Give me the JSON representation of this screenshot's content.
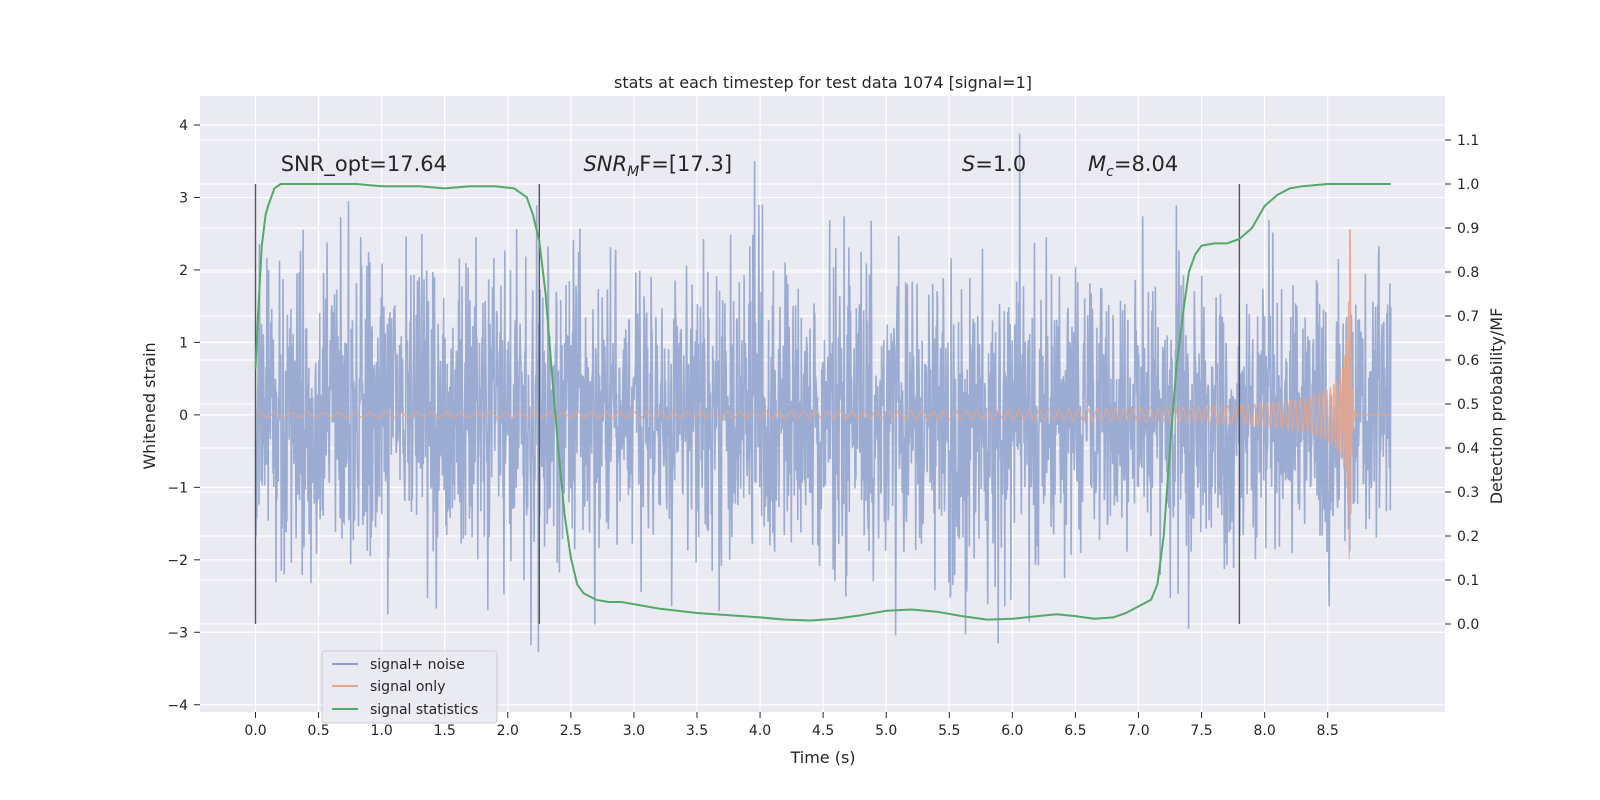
{
  "chart_data": {
    "type": "line",
    "title": "stats at each timestep for test data 1074 [signal=1]",
    "xlabel": "Time (s)",
    "ylabel_left": "Whitened strain",
    "ylabel_right": "Detection probability/MF",
    "xlim": [
      -0.44,
      9.43
    ],
    "ylim_left": [
      -4.1,
      4.4
    ],
    "ylim_right": [
      -0.2,
      1.2
    ],
    "x_ticks": [
      "0.0",
      "0.5",
      "1.0",
      "1.5",
      "2.0",
      "2.5",
      "3.0",
      "3.5",
      "4.0",
      "4.5",
      "5.0",
      "5.5",
      "6.0",
      "6.5",
      "7.0",
      "7.5",
      "8.0",
      "8.5"
    ],
    "x_tick_values": [
      0,
      0.5,
      1,
      1.5,
      2,
      2.5,
      3,
      3.5,
      4,
      4.5,
      5,
      5.5,
      6,
      6.5,
      7,
      7.5,
      8,
      8.5
    ],
    "y_ticks_left": [
      "−4",
      "−3",
      "−2",
      "−1",
      "0",
      "1",
      "2",
      "3",
      "4"
    ],
    "y_tick_values_left": [
      -4,
      -3,
      -2,
      -1,
      0,
      1,
      2,
      3,
      4
    ],
    "y_ticks_right": [
      "0.0",
      "0.1",
      "0.2",
      "0.3",
      "0.4",
      "0.5",
      "0.6",
      "0.7",
      "0.8",
      "0.9",
      "1.0",
      "1.1"
    ],
    "y_tick_values_right": [
      0,
      0.1,
      0.2,
      0.3,
      0.4,
      0.5,
      0.6,
      0.7,
      0.8,
      0.9,
      1.0,
      1.1
    ],
    "grid": true,
    "legend_position": "bottom-left",
    "series": [
      {
        "name": "signal+ noise",
        "color": "#8da0cb",
        "axis": "left",
        "kind": "noise",
        "t_range": [
          0,
          9.0
        ],
        "std": 1.0
      },
      {
        "name": "signal only",
        "color": "#e5a58b",
        "axis": "left",
        "kind": "chirp",
        "t_range": [
          0,
          9.0
        ],
        "merger_time": 8.68
      },
      {
        "name": "signal statistics",
        "color": "#55a868",
        "axis": "right",
        "kind": "line",
        "x": [
          0.0,
          0.02,
          0.05,
          0.08,
          0.1,
          0.15,
          0.2,
          0.3,
          0.5,
          0.8,
          1.0,
          1.3,
          1.5,
          1.7,
          1.9,
          2.05,
          2.15,
          2.2,
          2.25,
          2.3,
          2.35,
          2.4,
          2.45,
          2.5,
          2.55,
          2.6,
          2.7,
          2.8,
          2.9,
          3.0,
          3.2,
          3.5,
          4.0,
          4.2,
          4.4,
          4.6,
          4.8,
          5.0,
          5.2,
          5.4,
          5.6,
          5.8,
          6.0,
          6.2,
          6.35,
          6.5,
          6.65,
          6.8,
          6.9,
          7.0,
          7.1,
          7.15,
          7.2,
          7.25,
          7.3,
          7.35,
          7.4,
          7.45,
          7.5,
          7.6,
          7.7,
          7.8,
          7.9,
          8.0,
          8.1,
          8.2,
          8.3,
          8.5,
          8.7,
          9.0
        ],
        "y": [
          0.58,
          0.7,
          0.86,
          0.93,
          0.95,
          0.99,
          1.0,
          1.0,
          1.0,
          1.0,
          0.995,
          0.995,
          0.99,
          0.995,
          0.995,
          0.99,
          0.97,
          0.93,
          0.87,
          0.75,
          0.57,
          0.4,
          0.25,
          0.15,
          0.09,
          0.07,
          0.055,
          0.05,
          0.05,
          0.045,
          0.035,
          0.025,
          0.015,
          0.01,
          0.008,
          0.012,
          0.02,
          0.03,
          0.033,
          0.028,
          0.018,
          0.01,
          0.012,
          0.018,
          0.022,
          0.018,
          0.012,
          0.015,
          0.025,
          0.04,
          0.055,
          0.09,
          0.2,
          0.4,
          0.58,
          0.7,
          0.8,
          0.84,
          0.86,
          0.865,
          0.865,
          0.875,
          0.9,
          0.95,
          0.975,
          0.99,
          0.995,
          1.0,
          1.0,
          1.0
        ]
      }
    ],
    "vlines_x": [
      0.0,
      2.25,
      7.8
    ],
    "annotations": [
      {
        "text": "SNR_opt=17.64",
        "x": 0.2
      },
      {
        "text_main": "SNR",
        "text_sub": "M",
        "text_rest": "F=[17.3]",
        "x": 2.6
      },
      {
        "text_main": "S",
        "text_sub": "",
        "text_rest": "=1.0",
        "x": 5.6
      },
      {
        "text_main": "M",
        "text_sub": "c",
        "text_rest": "=8.04",
        "x": 6.6
      }
    ]
  }
}
